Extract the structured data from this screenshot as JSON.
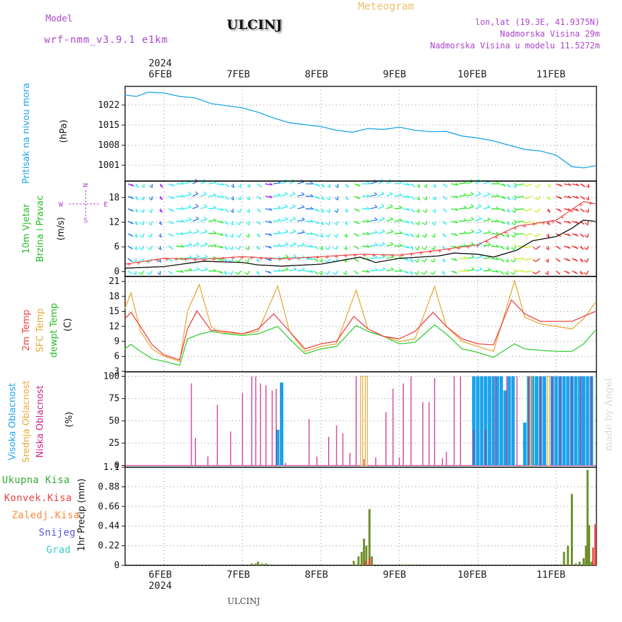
{
  "header": {
    "model_label": "Model",
    "model_name": "wrf-nmm_v3.9.1 e1km",
    "station": "ULCINJ",
    "meteogram": "Meteogram",
    "lonlat": "lon,lat (19.3E, 41.9375N)",
    "altitude": "Nadmorska Visina 29m",
    "model_altitude": "Nadmorska Visina u modelu 11.5272m"
  },
  "footer_station": "ULCINJ",
  "watermark": "made by Angel",
  "colors": {
    "pressure": "#1aa3e8",
    "temp2m": "#ee4040",
    "sfc": "#e8a838",
    "dewpt": "#33cc33",
    "high_cloud": "#1aa3e8",
    "mid_cloud": "#e8a838",
    "low_cloud": "#cc2288",
    "total_rain": "#33aa33",
    "conv_rain": "#ee4040",
    "frozen_rain": "#ff8833",
    "snow": "#5555dd",
    "hail": "#33cccc",
    "title_purple": "#aa44cc",
    "gold": "#e8c070"
  },
  "chart_data": {
    "type": "line",
    "x_axis": {
      "top_year": "2024",
      "bottom_year": "2024",
      "date_labels": [
        "6FEB",
        "7FEB",
        "8FEB",
        "9FEB",
        "10FEB",
        "11FEB"
      ],
      "day_positions": [
        0.5,
        1.5,
        2.5,
        3.5,
        4.5,
        5.5
      ],
      "range_days": [
        0,
        6
      ]
    },
    "panels": [
      {
        "id": "pressure",
        "ylabel": "Pritisak na nivou mora",
        "unit": "(hPa)",
        "yticks": [
          "1022",
          "1015",
          "1008",
          "1001"
        ],
        "ytick_values": [
          1022,
          1015,
          1008,
          1001
        ],
        "ylim": [
          995.5,
          1028.5
        ],
        "series": [
          {
            "x": [
              0,
              0.15,
              0.3,
              0.5,
              0.7,
              0.9,
              1.1,
              1.5,
              1.7,
              1.9,
              2.1,
              2.5,
              2.7,
              2.9,
              3.1,
              3.3,
              3.5,
              3.7,
              3.9,
              4.1,
              4.3,
              4.5,
              4.7,
              4.9,
              5.1,
              5.3,
              5.5,
              5.7,
              5.85,
              6
            ],
            "values": [
              1025.5,
              1025,
              1026.5,
              1026.2,
              1025,
              1024.5,
              1022.5,
              1021,
              1019.5,
              1017.5,
              1015.8,
              1014.5,
              1013.2,
              1012.5,
              1013.8,
              1013.5,
              1014.3,
              1013.2,
              1012.7,
              1012.8,
              1011.2,
              1010.5,
              1009.5,
              1008,
              1006.5,
              1006,
              1004.5,
              1000.5,
              1000.1,
              1000.8
            ]
          }
        ]
      },
      {
        "id": "wind",
        "ylabel_lines": [
          "10m Vjetar",
          "Brzina i Pravac"
        ],
        "unit": "(m/s)",
        "compass": [
          "N",
          "S",
          "E",
          "W"
        ],
        "yticks": [
          "18",
          "12",
          "6",
          "0"
        ],
        "ytick_values": [
          18,
          12,
          6,
          0
        ],
        "ylim": [
          -1.2,
          22
        ],
        "series": [
          {
            "name": "speed",
            "x": [
              0,
              0.5,
              1,
              1.5,
              1.7,
              2,
              2.5,
              3,
              3.2,
              3.5,
              4,
              4.2,
              4.5,
              4.7,
              5,
              5.2,
              5.5,
              5.7,
              5.85,
              6
            ],
            "values": [
              0.8,
              1.2,
              2.5,
              2.2,
              1.6,
              1.3,
              1.8,
              3.5,
              2.2,
              3.2,
              3.8,
              4.5,
              4.2,
              3.5,
              5.2,
              7.5,
              8.5,
              10.5,
              12.5,
              12.2
            ]
          },
          {
            "name": "gust",
            "x": [
              0,
              0.5,
              1,
              1.5,
              2,
              2.5,
              3,
              3.5,
              4,
              4.5,
              5,
              5.5,
              5.85,
              6
            ],
            "values": [
              1.8,
              3.2,
              3,
              3.6,
              3.1,
              3.6,
              4.2,
              4,
              5.2,
              6.5,
              11,
              12.5,
              17,
              16.5
            ]
          }
        ]
      },
      {
        "id": "temperature",
        "ylabel_lines": [
          "2m Temp",
          "SFC Temp",
          "dewpt Temp"
        ],
        "unit": "(C)",
        "yticks": [
          "21",
          "18",
          "15",
          "12",
          "9",
          "6",
          "3"
        ],
        "ytick_values": [
          21,
          18,
          15,
          12,
          9,
          6,
          3
        ],
        "ylim": [
          2.9,
          22
        ],
        "series": [
          {
            "name": "2m Temp",
            "x": [
              0,
              0.08,
              0.2,
              0.35,
              0.5,
              0.7,
              0.8,
              0.92,
              1.1,
              1.3,
              1.5,
              1.7,
              1.9,
              2.1,
              2.3,
              2.5,
              2.7,
              2.92,
              3.1,
              3.3,
              3.5,
              3.7,
              3.93,
              4.1,
              4.3,
              4.5,
              4.7,
              4.93,
              5.1,
              5.3,
              5.5,
              5.7,
              5.85,
              6
            ],
            "values": [
              13.5,
              14.8,
              12,
              8.3,
              6.3,
              5.3,
              11.5,
              15.1,
              11.2,
              11,
              10.5,
              11.5,
              14.5,
              11,
              7.5,
              8.5,
              9,
              14,
              11.5,
              10,
              9.5,
              11,
              14.8,
              12,
              9.5,
              8.5,
              8.3,
              17.3,
              14.5,
              13,
              13,
              13,
              14,
              15
            ]
          },
          {
            "name": "SFC Temp",
            "x": [
              0,
              0.08,
              0.2,
              0.35,
              0.5,
              0.7,
              0.8,
              0.95,
              1.1,
              1.2,
              1.5,
              1.7,
              1.95,
              2.1,
              2.3,
              2.5,
              2.7,
              2.95,
              3.1,
              3.3,
              3.5,
              3.7,
              3.95,
              4.1,
              4.3,
              4.5,
              4.7,
              4.97,
              5.1,
              5.3,
              5.5,
              5.7,
              5.85,
              6
            ],
            "values": [
              15.5,
              18.7,
              11,
              7.5,
              6,
              5,
              15,
              20.4,
              12,
              10.8,
              10.5,
              11,
              20.1,
              11,
              7,
              8,
              8.5,
              19.3,
              11.5,
              10,
              9,
              9.5,
              20,
              12,
              9,
              8,
              7,
              21.1,
              13.8,
              12.5,
              12,
              11.5,
              13.5,
              16.8
            ]
          },
          {
            "name": "dewpt Temp",
            "x": [
              0,
              0.08,
              0.2,
              0.35,
              0.5,
              0.7,
              0.8,
              0.95,
              1.1,
              1.3,
              1.5,
              1.7,
              1.95,
              2.1,
              2.3,
              2.5,
              2.7,
              2.95,
              3.1,
              3.3,
              3.5,
              3.7,
              3.95,
              4.1,
              4.3,
              4.5,
              4.7,
              4.97,
              5.1,
              5.3,
              5.5,
              5.7,
              5.85,
              6
            ],
            "values": [
              7.5,
              8.4,
              7,
              5.5,
              5,
              4.2,
              9.5,
              10.4,
              11,
              10.5,
              10.2,
              10.5,
              12,
              9.5,
              6.5,
              7.5,
              8,
              12.2,
              11,
              10,
              8.5,
              8.8,
              12.3,
              10.5,
              7.5,
              6.8,
              5.8,
              8.5,
              7.5,
              7.2,
              7,
              7,
              8.5,
              11.2
            ]
          }
        ]
      },
      {
        "id": "clouds",
        "ylabel_lines": [
          "Visoka Oblacnost",
          "Srednja Oblacnost",
          "Niska Oblacnost"
        ],
        "unit": "(%)",
        "yticks": [
          "100",
          "75",
          "50",
          "25",
          "0"
        ],
        "ytick_values": [
          100,
          75,
          50,
          25,
          0
        ],
        "ylim": [
          -2,
          105
        ],
        "low_x": [
          0.85,
          0.9,
          1.06,
          1.18,
          1.35,
          1.5,
          1.62,
          1.67,
          1.73,
          1.8,
          1.88,
          1.93,
          2.05,
          2.35,
          2.45,
          2.6,
          2.7,
          2.78,
          2.87,
          2.95,
          3.05,
          3.2,
          3.33,
          3.42,
          3.5,
          3.55,
          3.65,
          3.8,
          3.88,
          3.95,
          4.05,
          4.1,
          4.2,
          4.28,
          4.45,
          4.6,
          4.73,
          4.87,
          5.0,
          5.15,
          5.3,
          5.45,
          5.55,
          5.7,
          5.82,
          5.95
        ],
        "low_values": [
          92,
          31,
          10,
          68,
          38,
          81,
          100,
          100,
          92,
          90,
          84,
          86,
          3,
          52,
          10,
          32,
          45,
          36,
          14,
          100,
          7,
          9,
          60,
          86,
          9,
          92,
          100,
          71,
          71,
          98,
          8,
          15,
          100,
          100,
          40,
          40,
          100,
          100,
          100,
          100,
          100,
          100,
          100,
          100,
          100,
          100
        ],
        "mid_x": [
          3.02,
          3.08,
          5.18,
          5.4
        ],
        "mid_values": [
          100,
          100,
          100,
          100
        ],
        "high_x": [
          1.95,
          2.0,
          4.45,
          4.5,
          4.55,
          4.6,
          4.65,
          4.7,
          4.75,
          4.8,
          4.85,
          4.9,
          4.95,
          5.1,
          5.15,
          5.2,
          5.25,
          5.3,
          5.35,
          5.45,
          5.5,
          5.55,
          5.6,
          5.65,
          5.7,
          5.75,
          5.8,
          5.85,
          5.9,
          5.95
        ],
        "high_values": [
          40,
          93,
          100,
          100,
          100,
          100,
          100,
          100,
          100,
          100,
          84,
          100,
          100,
          48,
          100,
          100,
          100,
          100,
          100,
          100,
          100,
          100,
          100,
          100,
          100,
          100,
          100,
          100,
          100,
          100
        ]
      },
      {
        "id": "precip",
        "legend": [
          "Ukupna Kisa",
          "Konvek.Kisa",
          "Zaledj.Kisa",
          "Snijeg",
          "Grad"
        ],
        "unit": "1hr Precip (mm)",
        "yticks": [
          "1.1",
          "0.88",
          "0.66",
          "0.44",
          "0.22",
          "0"
        ],
        "ytick_values": [
          1.1,
          0.88,
          0.66,
          0.44,
          0.22,
          0
        ],
        "ylim": [
          0,
          1.1
        ],
        "total_x": [
          0.75,
          1.15,
          1.62,
          1.67,
          1.7,
          1.75,
          1.8,
          2.92,
          2.98,
          3.02,
          3.05,
          3.08,
          3.12,
          3.15,
          3.55,
          3.7,
          5.6,
          5.65,
          5.7,
          5.95,
          6.0,
          5.75,
          5.8,
          5.85,
          5.88,
          5.9,
          5.92
        ],
        "total_values": [
          0.01,
          0.01,
          0.02,
          0.02,
          0.04,
          0.02,
          0.02,
          0.05,
          0.1,
          0.15,
          0.3,
          0.22,
          0.63,
          0.1,
          0.01,
          0.01,
          0.15,
          0.22,
          0.8,
          0.04,
          0.46,
          0.02,
          0.04,
          0.08,
          0.22,
          1.07,
          0.45
        ],
        "conv_x": [
          3.05,
          3.1,
          5.95,
          5.98
        ],
        "conv_values": [
          0.05,
          0.08,
          0.2,
          0.46
        ]
      }
    ]
  }
}
